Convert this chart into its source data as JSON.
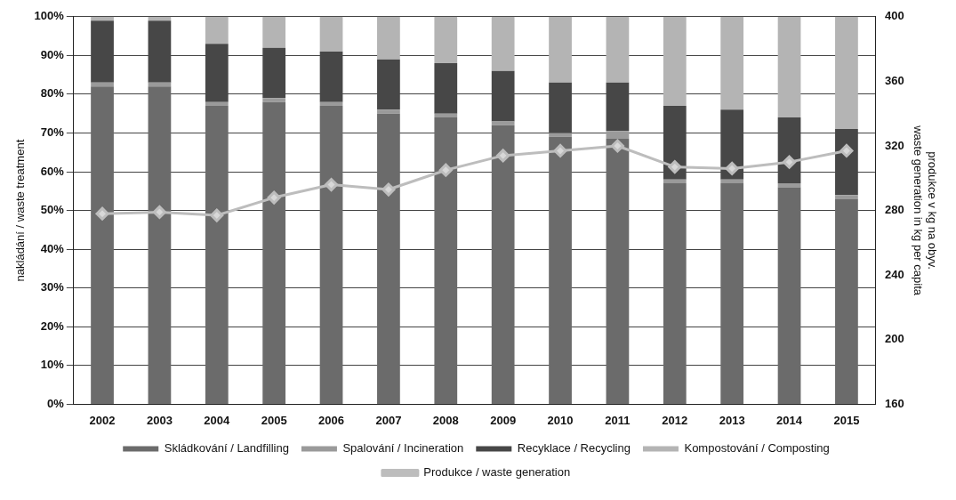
{
  "chart_data": {
    "type": "bar",
    "stacked": true,
    "categories": [
      "2002",
      "2003",
      "2004",
      "2005",
      "2006",
      "2007",
      "2008",
      "2009",
      "2010",
      "2011",
      "2012",
      "2013",
      "2014",
      "2015"
    ],
    "ylabel": "nakládání / waste treatment",
    "y2label": "produkce v kg na obyv.\nwaste generation in kg per capita",
    "ylim": [
      0,
      100
    ],
    "yticks": [
      {
        "value": 0,
        "label": "0%"
      },
      {
        "value": 10,
        "label": "10%"
      },
      {
        "value": 20,
        "label": "20%"
      },
      {
        "value": 30,
        "label": "30%"
      },
      {
        "value": 40,
        "label": "40%"
      },
      {
        "value": 50,
        "label": "50%"
      },
      {
        "value": 60,
        "label": "60%"
      },
      {
        "value": 70,
        "label": "70%"
      },
      {
        "value": 80,
        "label": "80%"
      },
      {
        "value": 90,
        "label": "90%"
      },
      {
        "value": 100,
        "label": "100%"
      }
    ],
    "y2lim": [
      160,
      400
    ],
    "y2ticks": [
      160,
      200,
      240,
      280,
      320,
      360,
      400
    ],
    "grid": "y",
    "legend": "bottom",
    "marker": "diamond",
    "series": [
      {
        "name": "Skládkování / Landfilling",
        "color": "#6b6b6b",
        "values": [
          82,
          82,
          77,
          78,
          77,
          75,
          74,
          72,
          69,
          68.5,
          57,
          57,
          56,
          53
        ]
      },
      {
        "name": "Spalování / Incineration",
        "color": "#9a9a9a",
        "values": [
          1,
          1,
          1,
          1,
          1,
          1,
          1,
          1,
          1,
          2,
          1,
          1,
          1,
          1
        ]
      },
      {
        "name": "Recyklace / Recycling",
        "color": "#474747",
        "values": [
          16,
          16,
          15,
          13,
          13,
          13,
          13,
          13,
          13,
          12.5,
          19,
          18,
          17,
          17
        ]
      },
      {
        "name": "Kompostování / Composting",
        "color": "#b4b4b4",
        "values": [
          1,
          1,
          7,
          8,
          9,
          11,
          12,
          14,
          17,
          17,
          23,
          24,
          26,
          29
        ]
      },
      {
        "name": "Produkce / waste generation",
        "type": "line",
        "axis": "y2",
        "color": "#bdbdbd",
        "values": [
          278,
          279,
          277,
          288,
          296,
          293,
          305,
          314,
          317,
          320,
          307,
          306,
          310,
          317
        ]
      }
    ]
  }
}
